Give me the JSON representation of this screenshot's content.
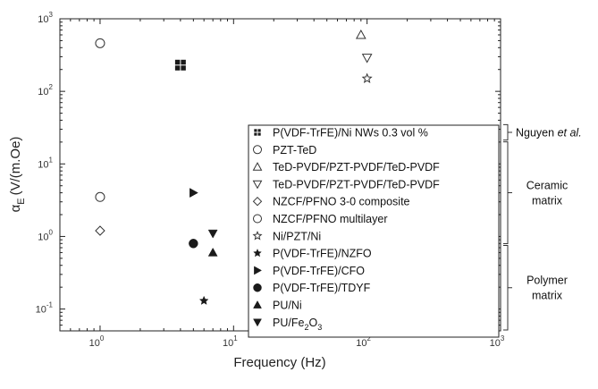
{
  "chart_data": {
    "type": "scatter",
    "xlabel": "Frequency (Hz)",
    "ylabel_main": "α",
    "ylabel_sub": "E",
    "ylabel_unit": "(V/(m.Oe)",
    "x_scale": "log",
    "y_scale": "log",
    "xlim": [
      0.5,
      1000
    ],
    "ylim": [
      0.05,
      1000
    ],
    "x_ticks": [
      {
        "v": 1,
        "e": "0"
      },
      {
        "v": 10,
        "e": "1"
      },
      {
        "v": 100,
        "e": "2"
      },
      {
        "v": 1000,
        "e": "3"
      }
    ],
    "y_ticks": [
      {
        "v": 0.1,
        "e": "-1"
      },
      {
        "v": 1,
        "e": "0"
      },
      {
        "v": 10,
        "e": "1"
      },
      {
        "v": 100,
        "e": "2"
      },
      {
        "v": 1000,
        "e": "3"
      }
    ],
    "tick_base": "10",
    "legend_position": "lower-right",
    "series": [
      {
        "name": "P(VDF-TrFE)/Ni NWs 0.3 vol %",
        "marker": "grid-square",
        "points": [
          [
            4,
            230
          ]
        ]
      },
      {
        "name": "PZT-TeD",
        "marker": "circle-open",
        "points": [
          [
            1,
            460
          ]
        ]
      },
      {
        "name": "TeD-PVDF/PZT-PVDF/TeD-PVDF",
        "marker": "triangle-up-open",
        "points": [
          [
            90,
            600
          ]
        ]
      },
      {
        "name": "TeD-PVDF/PZT-PVDF/TeD-PVDF",
        "marker": "triangle-down-open",
        "points": [
          [
            100,
            290
          ]
        ]
      },
      {
        "name": "NZCF/PFNO 3-0 composite",
        "marker": "diamond-open",
        "points": [
          [
            1,
            1.2
          ]
        ]
      },
      {
        "name": "NZCF/PFNO multilayer",
        "marker": "circle-open",
        "points": [
          [
            1,
            3.5
          ]
        ]
      },
      {
        "name": "Ni/PZT/Ni",
        "marker": "star-open",
        "points": [
          [
            100,
            150
          ]
        ]
      },
      {
        "name": "P(VDF-TrFE)/NZFO",
        "marker": "star-filled",
        "points": [
          [
            6,
            0.13
          ]
        ]
      },
      {
        "name": "P(VDF-TrFE)/CFO",
        "marker": "triangle-right-filled",
        "points": [
          [
            5,
            4
          ]
        ]
      },
      {
        "name": "P(VDF-TrFE)/TDYF",
        "marker": "circle-filled",
        "points": [
          [
            5,
            0.8
          ]
        ]
      },
      {
        "name": "PU/Ni",
        "marker": "triangle-up-filled",
        "points": [
          [
            7,
            0.6
          ]
        ]
      },
      {
        "name": "PU/Fe2O3",
        "label_base": "PU/Fe",
        "label_sub": "2",
        "label_tail": "O",
        "label_sub2": "3",
        "marker": "triangle-down-filled",
        "points": [
          [
            7,
            1.1
          ]
        ]
      }
    ],
    "groups": [
      {
        "label_lines": [
          "Nguyen et al."
        ],
        "italic_part": "et al.",
        "plain_part": "Nguyen ",
        "first_series": 0,
        "last_series": 0
      },
      {
        "label_lines": [
          "Ceramic",
          "matrix"
        ],
        "first_series": 1,
        "last_series": 6
      },
      {
        "label_lines": [
          "Polymer",
          "matrix"
        ],
        "first_series": 7,
        "last_series": 11
      }
    ]
  }
}
